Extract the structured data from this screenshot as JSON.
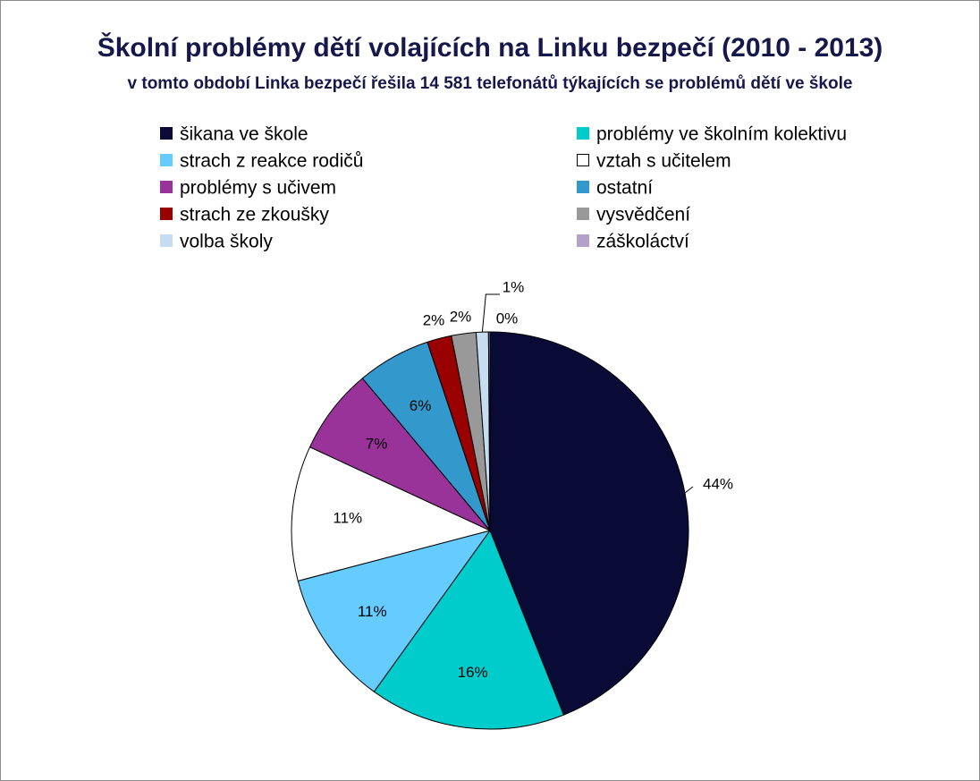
{
  "chart_data": {
    "type": "pie",
    "title": "Školní problémy dětí volajících na Linku bezpečí  (2010 - 2013)",
    "subtitle": "v tomto období  Linka bezpečí řešila 14 581 telefonátů týkajících se problémů dětí  ve škole",
    "legend_position": "top",
    "slices": [
      {
        "name": "šikana ve škole",
        "value": 44,
        "label": "44%",
        "color": "#0a0a36"
      },
      {
        "name": "problémy ve školním kolektivu",
        "value": 16,
        "label": "16%",
        "color": "#00cccc"
      },
      {
        "name": "strach z reakce rodičů",
        "value": 11,
        "label": "11%",
        "color": "#66ccff"
      },
      {
        "name": "vztah s učitelem",
        "value": 11,
        "label": "11%",
        "color": "#ffffff"
      },
      {
        "name": "problémy s učivem",
        "value": 7,
        "label": "7%",
        "color": "#993399"
      },
      {
        "name": "ostatní",
        "value": 6,
        "label": "6%",
        "color": "#3399cc"
      },
      {
        "name": "strach ze zkoušky",
        "value": 2,
        "label": "2%",
        "color": "#990000"
      },
      {
        "name": "vysvědčení",
        "value": 2,
        "label": "2%",
        "color": "#999999"
      },
      {
        "name": "volba školy",
        "value": 1,
        "label": "1%",
        "color": "#c6dcf0"
      },
      {
        "name": "záškoláctví",
        "value": 0,
        "label": "0%",
        "color": "#b3a2c7"
      }
    ]
  }
}
